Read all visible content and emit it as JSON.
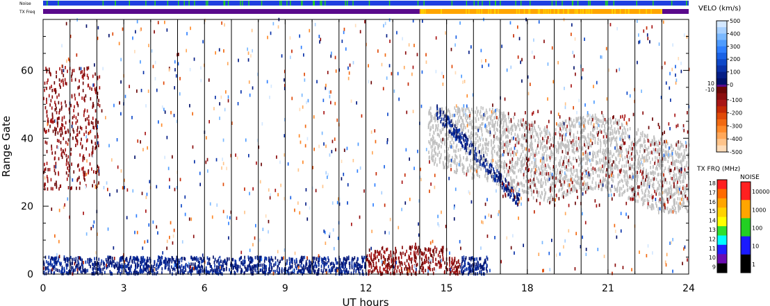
{
  "chart_data": {
    "type": "heatmap",
    "title": "",
    "xlabel": "UT hours",
    "ylabel": "Range Gate",
    "xlim": [
      0,
      24
    ],
    "ylim": [
      0,
      75
    ],
    "x_ticks": [
      "0",
      "3",
      "6",
      "9",
      "12",
      "15",
      "18",
      "21",
      "24"
    ],
    "y_ticks": [
      "0",
      "20",
      "40",
      "60"
    ],
    "grid": "vertical lines at each UT hour",
    "status_bars": [
      {
        "label": "Noise",
        "description": "blue strip with sparse green marks"
      },
      {
        "label": "TX Freq",
        "segments": [
          {
            "from": 0,
            "to": 14,
            "color": "#5a0a8c"
          },
          {
            "from": 14,
            "to": 23,
            "color": "#ffa500"
          },
          {
            "from": 23,
            "to": 24,
            "color": "#5a0a8c"
          }
        ]
      }
    ],
    "features": [
      {
        "name": "near-range echoes",
        "x": [
          0,
          24
        ],
        "gates": [
          0,
          6
        ],
        "velocity": "negative (0 to 12 UT), positive (12 to 16 UT)"
      },
      {
        "name": "ground scatter band",
        "x": [
          14.3,
          24
        ],
        "gates": [
          18,
          48
        ],
        "color": "#c0c0c0"
      },
      {
        "name": "early echo patch",
        "x": [
          0,
          1.5
        ],
        "gates": [
          25,
          60
        ],
        "velocity": "positive"
      }
    ],
    "velocity_scale": {
      "label": "VELO (km/s)",
      "ticks": [
        "500",
        "400",
        "300",
        "200",
        "100",
        "0",
        "-100",
        "-200",
        "-300",
        "-400",
        "-500"
      ],
      "gap_labels": [
        "10",
        "-10"
      ],
      "colors_negative_top_to_bottom": [
        "#d4e8ff",
        "#a8d0ff",
        "#7ab8ff",
        "#4f9cff",
        "#2f7fff",
        "#1a62e6",
        "#0e48c8",
        "#0a32a8",
        "#061e86",
        "#02116a"
      ],
      "colors_positive_top_to_bottom": [
        "#6a0606",
        "#8b0d0d",
        "#a81616",
        "#c42a06",
        "#e04a08",
        "#f26a12",
        "#ff8a2a",
        "#ffa85a",
        "#ffc48a",
        "#ffdcb8"
      ]
    },
    "txfreq_scale": {
      "label": "TX FRQ (MHz)",
      "ticks": [
        "18",
        "17",
        "16",
        "15",
        "14",
        "13",
        "12",
        "11",
        "10",
        "9"
      ],
      "colors_top_to_bottom": [
        "#ff2020",
        "#ff6a00",
        "#ffa500",
        "#ffd200",
        "#ffff00",
        "#2ee02e",
        "#00ffff",
        "#2020ff",
        "#6a0cb2",
        "#000000"
      ]
    },
    "noise_scale": {
      "label": "NOISE",
      "ticks": [
        "10000",
        "1000",
        "100",
        "10",
        "1"
      ],
      "colors_top_to_bottom": [
        "#ff2020",
        "#ffa500",
        "#22d022",
        "#1a1aff",
        "#000000"
      ]
    }
  }
}
